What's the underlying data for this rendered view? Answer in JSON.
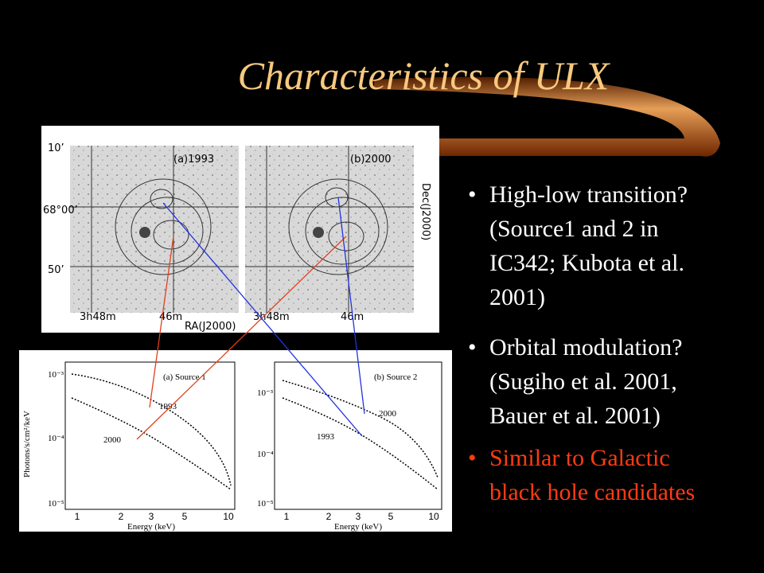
{
  "title": "Characteristics of ULX",
  "bullets": [
    {
      "lines": [
        "High-low transition?",
        "(Source1 and 2 in",
        "IC342; Kubota et al.",
        "2001)"
      ]
    },
    {
      "lines": [
        "Orbital modulation?",
        "(Sugiho et al. 2001,",
        "Bauer et al. 2001)"
      ]
    },
    {
      "lines": [
        "Similar to Galactic",
        "black hole candidates"
      ]
    }
  ],
  "sky_image": {
    "panels": [
      "(a)1993",
      "(b)2000"
    ],
    "dec_labels": [
      "10’",
      "68°00’",
      "50’"
    ],
    "ra_labels": [
      "3h48m",
      "46m"
    ],
    "x_label": "RA(J2000)",
    "y_label": "Dec(J2000)"
  },
  "spectra": {
    "panels": [
      "(a)  Source 1",
      "(b)  Source 2"
    ],
    "y_label": "Photons/s/cm²/keV",
    "x_label": "Energy (keV)",
    "yticks": [
      "10⁻³",
      "10⁻⁴",
      "10⁻⁵"
    ],
    "xticks": [
      "1",
      "2",
      "3",
      "5",
      "10"
    ],
    "curves": [
      "1993",
      "2000"
    ]
  }
}
